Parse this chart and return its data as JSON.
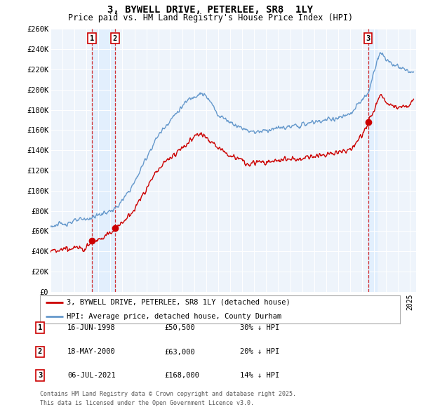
{
  "title": "3, BYWELL DRIVE, PETERLEE, SR8  1LY",
  "subtitle": "Price paid vs. HM Land Registry's House Price Index (HPI)",
  "ylim": [
    0,
    260000
  ],
  "yticks": [
    0,
    20000,
    40000,
    60000,
    80000,
    100000,
    120000,
    140000,
    160000,
    180000,
    200000,
    220000,
    240000,
    260000
  ],
  "ytick_labels": [
    "£0",
    "£20K",
    "£40K",
    "£60K",
    "£80K",
    "£100K",
    "£120K",
    "£140K",
    "£160K",
    "£180K",
    "£200K",
    "£220K",
    "£240K",
    "£260K"
  ],
  "xlim_start": 1995.0,
  "xlim_end": 2025.5,
  "sale_dates": [
    1998.46,
    2000.38,
    2021.51
  ],
  "sale_prices": [
    50500,
    63000,
    168000
  ],
  "sale_labels": [
    "1",
    "2",
    "3"
  ],
  "sale_info": [
    {
      "label": "1",
      "date": "16-JUN-1998",
      "price": "£50,500",
      "pct": "30% ↓ HPI"
    },
    {
      "label": "2",
      "date": "18-MAY-2000",
      "price": "£63,000",
      "pct": "20% ↓ HPI"
    },
    {
      "label": "3",
      "date": "06-JUL-2021",
      "price": "£168,000",
      "pct": "14% ↓ HPI"
    }
  ],
  "legend_line1": "3, BYWELL DRIVE, PETERLEE, SR8 1LY (detached house)",
  "legend_line2": "HPI: Average price, detached house, County Durham",
  "footer1": "Contains HM Land Registry data © Crown copyright and database right 2025.",
  "footer2": "This data is licensed under the Open Government Licence v3.0.",
  "price_line_color": "#cc0000",
  "hpi_line_color": "#6699cc",
  "shade_color": "#ddeeff",
  "bg_color": "#ffffff",
  "plot_bg_color": "#eef4fb",
  "grid_color": "#ffffff"
}
